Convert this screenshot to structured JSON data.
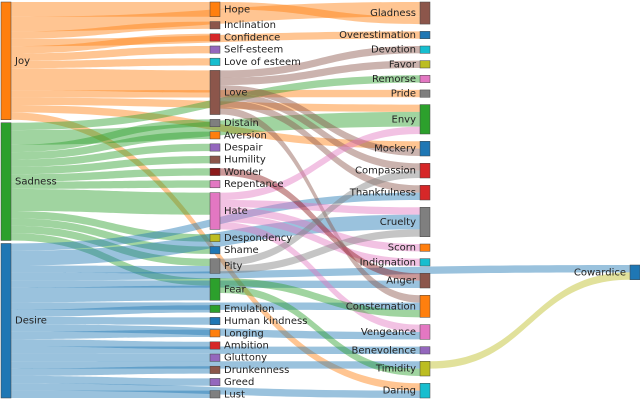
{
  "colors": {
    "Joy": "#ff7f0e",
    "Sadness": "#2ca02c",
    "Desire": "#1f77b4",
    "Hope": "#ff7f0e",
    "Inclination": "#8c564b",
    "Confidence": "#d62728",
    "Self-esteem": "#9467bd",
    "Love of esteem": "#17becf",
    "Love": "#8c564b",
    "Distain": "#7f7f7f",
    "Aversion": "#ff7f0e",
    "Despair": "#9467bd",
    "Humility": "#8c564b",
    "Wonder": "#8c1b1b",
    "Repentance": "#e377c2",
    "Hate": "#e377c2",
    "Despondency": "#bcbd22",
    "Shame": "#1f77b4",
    "Pity": "#7f7f7f",
    "Fear": "#2ca02c",
    "Emulation": "#2ca02c",
    "Human kindness": "#1f77b4",
    "Longing": "#ff7f0e",
    "Ambition": "#d62728",
    "Gluttony": "#9467bd",
    "Drunkenness": "#8c564b",
    "Greed": "#9467bd",
    "Lust": "#7f7f7f",
    "Gladness": "#8c564b",
    "Overestimation": "#1f77b4",
    "Devotion": "#17becf",
    "Favor": "#bcbd22",
    "Remorse": "#e377c2",
    "Pride": "#7f7f7f",
    "Envy": "#2ca02c",
    "Mockery": "#1f77b4",
    "Compassion": "#d62728",
    "Thankfulness": "#d62728",
    "Cruelty": "#7f7f7f",
    "Scorn": "#ff7f0e",
    "Indignation": "#17becf",
    "Anger": "#8c564b",
    "Consternation": "#ff7f0e",
    "Vengeance": "#e377c2",
    "Benevolence": "#9467bd",
    "Timidity": "#bcbd22",
    "Daring": "#17becf",
    "Cowardice": "#1f77b4"
  },
  "columns": [
    [
      "Joy",
      "Sadness",
      "Desire"
    ],
    [
      "Hope",
      "Inclination",
      "Confidence",
      "Self-esteem",
      "Love of esteem",
      "Love",
      "Distain",
      "Aversion",
      "Despair",
      "Humility",
      "Wonder",
      "Repentance",
      "Hate",
      "Despondency",
      "Shame",
      "Pity",
      "Fear",
      "Emulation",
      "Human kindness",
      "Longing",
      "Ambition",
      "Gluttony",
      "Drunkenness",
      "Greed",
      "Lust"
    ],
    [
      "Gladness",
      "Overestimation",
      "Devotion",
      "Favor",
      "Remorse",
      "Pride",
      "Envy",
      "Mockery",
      "Compassion",
      "Thankfulness",
      "Cruelty",
      "Scorn",
      "Indignation",
      "Anger",
      "Consternation",
      "Vengeance",
      "Benevolence",
      "Timidity",
      "Daring"
    ],
    [
      "Cowardice"
    ]
  ],
  "links": [
    [
      "Joy",
      "Hope",
      2
    ],
    [
      "Joy",
      "Inclination",
      1
    ],
    [
      "Joy",
      "Confidence",
      1
    ],
    [
      "Joy",
      "Self-esteem",
      1
    ],
    [
      "Joy",
      "Love of esteem",
      1
    ],
    [
      "Joy",
      "Love",
      3
    ],
    [
      "Joy",
      "Gladness",
      2
    ],
    [
      "Joy",
      "Overestimation",
      1
    ],
    [
      "Joy",
      "Pride",
      1
    ],
    [
      "Joy",
      "Mockery",
      1
    ],
    [
      "Joy",
      "Envy",
      1
    ],
    [
      "Joy",
      "Daring",
      1
    ],
    [
      "Sadness",
      "Distain",
      1
    ],
    [
      "Sadness",
      "Aversion",
      1
    ],
    [
      "Sadness",
      "Despair",
      1
    ],
    [
      "Sadness",
      "Humility",
      1
    ],
    [
      "Sadness",
      "Wonder",
      1
    ],
    [
      "Sadness",
      "Repentance",
      1
    ],
    [
      "Sadness",
      "Hate",
      3
    ],
    [
      "Sadness",
      "Despondency",
      1
    ],
    [
      "Sadness",
      "Shame",
      1
    ],
    [
      "Sadness",
      "Pity",
      1
    ],
    [
      "Sadness",
      "Fear",
      1
    ],
    [
      "Sadness",
      "Remorse",
      1
    ],
    [
      "Sadness",
      "Envy",
      2
    ],
    [
      "Desire",
      "Cowardice",
      1
    ],
    [
      "Desire",
      "Emulation",
      1
    ],
    [
      "Desire",
      "Human kindness",
      1
    ],
    [
      "Desire",
      "Longing",
      1
    ],
    [
      "Desire",
      "Ambition",
      1
    ],
    [
      "Desire",
      "Gluttony",
      1
    ],
    [
      "Desire",
      "Drunkenness",
      1
    ],
    [
      "Desire",
      "Greed",
      1
    ],
    [
      "Desire",
      "Lust",
      1
    ],
    [
      "Desire",
      "Pity",
      1
    ],
    [
      "Desire",
      "Fear",
      2
    ],
    [
      "Desire",
      "Cruelty",
      2
    ],
    [
      "Desire",
      "Thankfulness",
      1
    ],
    [
      "Desire",
      "Anger",
      1
    ],
    [
      "Desire",
      "Vengeance",
      1
    ],
    [
      "Desire",
      "Benevolence",
      1
    ],
    [
      "Desire",
      "Timidity",
      1
    ],
    [
      "Desire",
      "Daring",
      1
    ],
    [
      "Desire",
      "Consternation",
      1
    ],
    [
      "Hope",
      "Gladness",
      1
    ],
    [
      "Love",
      "Devotion",
      1
    ],
    [
      "Love",
      "Favor",
      1
    ],
    [
      "Love",
      "Compassion",
      1
    ],
    [
      "Love",
      "Thankfulness",
      1
    ],
    [
      "Love",
      "Mockery",
      1
    ],
    [
      "Love",
      "Consternation",
      1
    ],
    [
      "Hate",
      "Scorn",
      1
    ],
    [
      "Hate",
      "Indignation",
      1
    ],
    [
      "Hate",
      "Vengeance",
      1
    ],
    [
      "Hate",
      "Cruelty",
      1
    ],
    [
      "Hate",
      "Envy",
      1
    ],
    [
      "Wonder",
      "Anger",
      1
    ],
    [
      "Pity",
      "Compassion",
      1
    ],
    [
      "Pity",
      "Cruelty",
      1
    ],
    [
      "Fear",
      "Consternation",
      1
    ],
    [
      "Fear",
      "Timidity",
      1
    ],
    [
      "Timidity",
      "Cowardice",
      1
    ]
  ]
}
